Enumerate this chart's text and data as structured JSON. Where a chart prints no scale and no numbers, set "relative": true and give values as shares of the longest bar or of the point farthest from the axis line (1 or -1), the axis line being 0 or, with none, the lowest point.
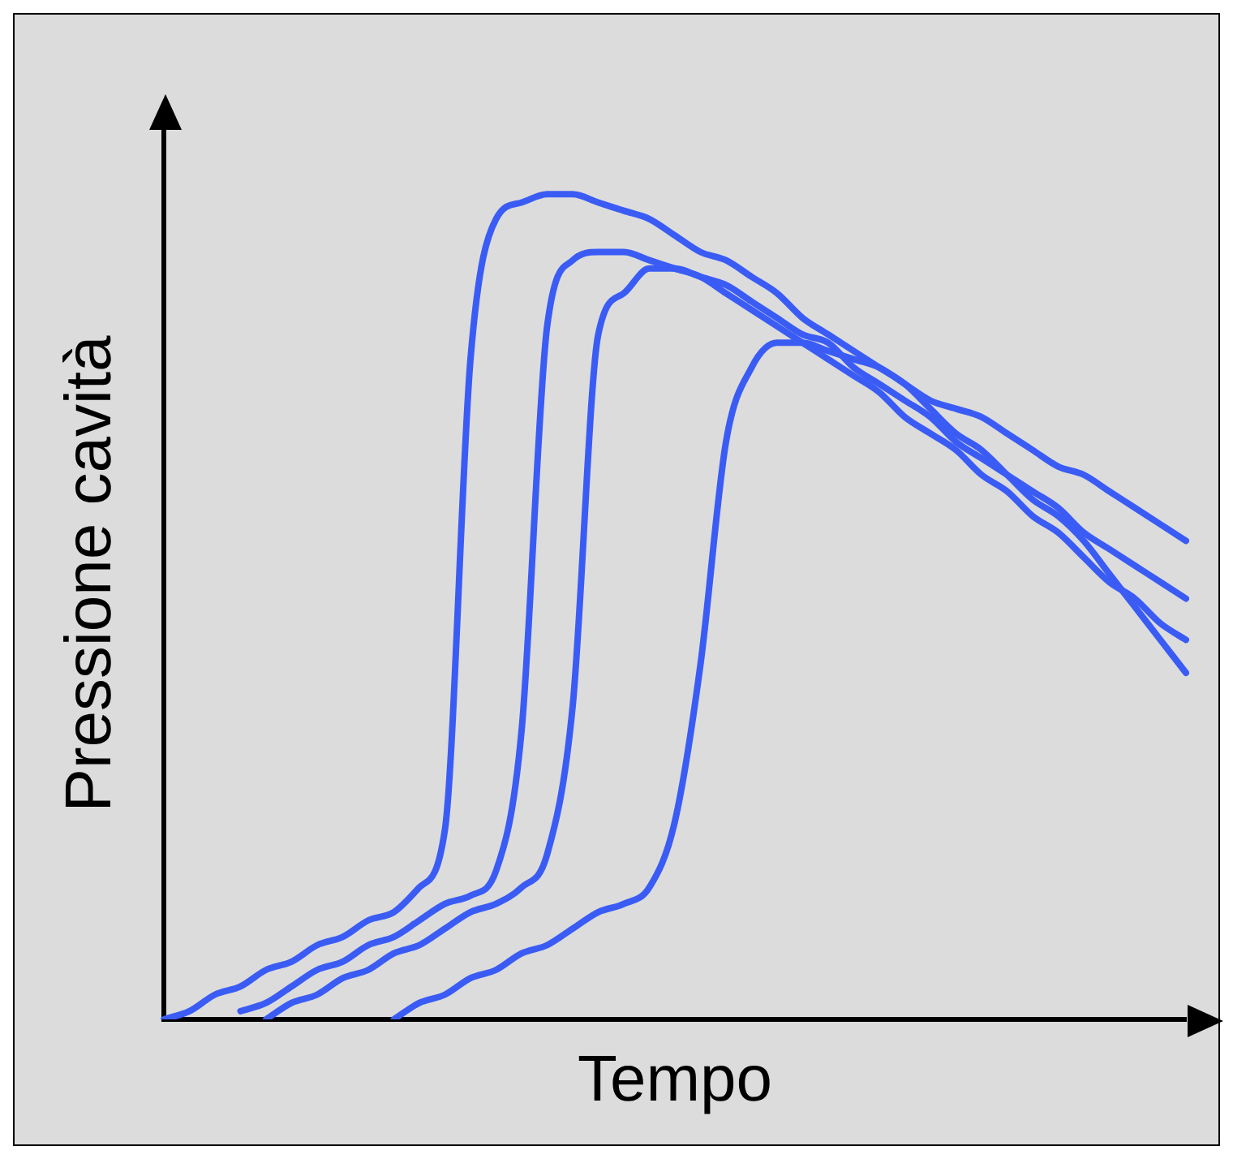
{
  "chart_data": {
    "type": "line",
    "relative": true,
    "xlabel": "Tempo",
    "ylabel": "Pressione cavità",
    "grid": false,
    "legend": false,
    "marker": "none",
    "line_style": "solid",
    "categories": [
      null,
      null,
      null,
      null,
      null,
      null,
      null,
      null,
      null,
      null,
      null,
      null,
      null,
      null,
      null,
      null,
      null,
      null,
      null,
      null,
      null,
      null,
      null,
      null,
      null,
      null,
      null,
      null,
      null,
      null,
      null,
      null,
      null,
      null,
      null,
      null,
      null,
      null,
      null,
      null,
      null
    ],
    "series": [
      {
        "color": "#3a5cf5",
        "values": [
          0,
          0.01,
          0.03,
          0.04,
          0.06,
          0.07,
          0.09,
          0.1,
          0.12,
          0.13,
          0.16,
          0.23,
          0.8,
          0.97,
          0.99,
          1.0,
          1.0,
          0.99,
          0.98,
          0.97,
          0.95,
          0.93,
          0.92,
          0.9,
          0.88,
          0.85,
          0.83,
          0.81,
          0.79,
          0.77,
          0.74,
          0.71,
          0.69,
          0.66,
          0.63,
          0.61,
          0.58,
          0.54,
          0.5,
          0.46,
          0.42
        ]
      },
      {
        "color": "#3a5cf5",
        "values": [
          null,
          null,
          null,
          0.01,
          0.02,
          0.04,
          0.06,
          0.07,
          0.09,
          0.1,
          0.12,
          0.14,
          0.15,
          0.18,
          0.35,
          0.84,
          0.92,
          0.93,
          0.93,
          0.92,
          0.91,
          0.9,
          0.88,
          0.86,
          0.84,
          0.82,
          0.8,
          0.78,
          0.76,
          0.73,
          0.71,
          0.69,
          0.66,
          0.64,
          0.61,
          0.59,
          0.56,
          0.53,
          0.51,
          0.48,
          0.46
        ]
      },
      {
        "color": "#3a5cf5",
        "values": [
          null,
          null,
          null,
          null,
          0,
          0.02,
          0.03,
          0.05,
          0.06,
          0.08,
          0.09,
          0.11,
          0.13,
          0.14,
          0.16,
          0.2,
          0.38,
          0.83,
          0.88,
          0.91,
          0.91,
          0.9,
          0.89,
          0.87,
          0.85,
          0.83,
          0.82,
          0.79,
          0.77,
          0.75,
          0.73,
          0.7,
          0.68,
          0.66,
          0.64,
          0.62,
          0.59,
          0.57,
          0.55,
          0.53,
          0.51
        ]
      },
      {
        "color": "#3a5cf5",
        "values": [
          null,
          null,
          null,
          null,
          null,
          null,
          null,
          null,
          null,
          0,
          0.02,
          0.03,
          0.05,
          0.06,
          0.08,
          0.09,
          0.11,
          0.13,
          0.14,
          0.16,
          0.24,
          0.43,
          0.7,
          0.79,
          0.82,
          0.82,
          0.81,
          0.8,
          0.79,
          0.77,
          0.75,
          0.74,
          0.73,
          0.71,
          0.69,
          0.67,
          0.66,
          0.64,
          0.62,
          0.6,
          0.58
        ]
      }
    ]
  }
}
